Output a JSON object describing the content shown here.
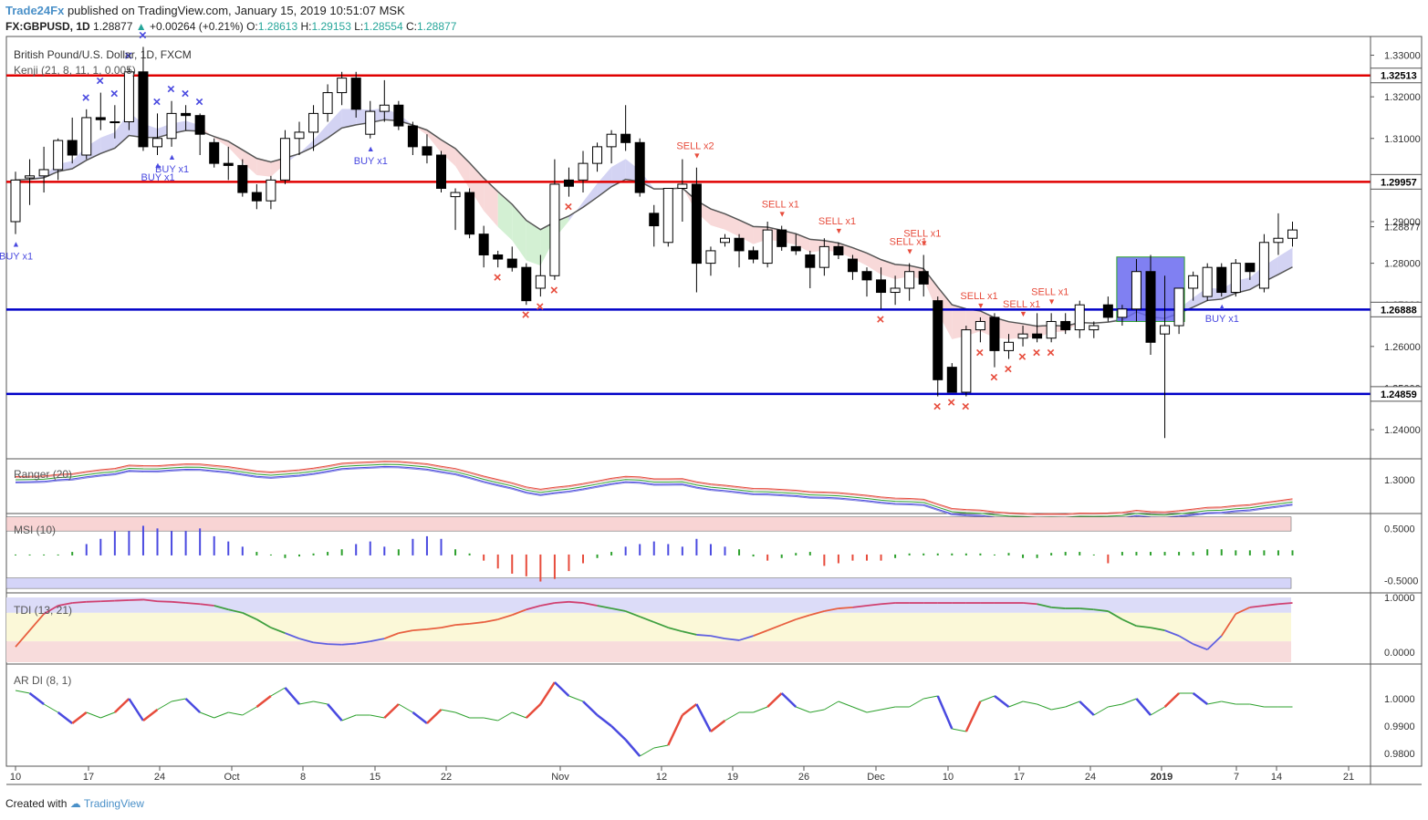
{
  "header": {
    "brand": "Trade24Fx",
    "published": "published on TradingView.com, January 15, 2019 10:51:07 MSK",
    "symbol": "FX:GBPUSD, 1D",
    "last": "1.28877",
    "change_arrow": "▲",
    "change": "+0.00264 (+0.21%)",
    "o_label": "O:",
    "o": "1.28613",
    "h_label": "H:",
    "h": "1.29153",
    "l_label": "L:",
    "l": "1.28554",
    "c_label": "C:",
    "c": "1.28877"
  },
  "legend": {
    "title": "British Pound/U.S. Dollar, 1D, FXCM",
    "indicator": "Kenji (21, 8, 11, 1, 0.005)"
  },
  "panes": {
    "ranger": "Ranger (20)",
    "msi": "MSI (10)",
    "tdi": "TDI (13, 21)",
    "ardi": "AR DI (8, 1)"
  },
  "footer": {
    "created_with": "Created with",
    "brand": "TradingView"
  },
  "colors": {
    "up": "#ffffff",
    "down": "#000000",
    "red_line": "#e00000",
    "blue_line": "#0000c8",
    "signal_red": "#e74c3c",
    "signal_blue": "#4a4ae0",
    "cloud_blue": "#c8c8f0",
    "cloud_red": "#f6d0d0",
    "cloud_green": "#c8ecc8"
  },
  "chart_data": [
    {
      "type": "candlestick",
      "title": "British Pound/U.S. Dollar, 1D, FXCM",
      "ylim": [
        1.233,
        1.3345
      ],
      "y_ticks": [
        "1.33000",
        "1.32000",
        "1.31000",
        "1.30000",
        "1.29000",
        "1.28000",
        "1.27000",
        "1.26000",
        "1.25000",
        "1.24000"
      ],
      "x_ticks": [
        "10",
        "17",
        "24",
        "Oct",
        "8",
        "15",
        "22",
        "Nov",
        "12",
        "19",
        "26",
        "Dec",
        "10",
        "17",
        "24",
        "2019",
        "7",
        "14",
        "21"
      ],
      "horizontal_levels": [
        {
          "price": 1.32513,
          "label": "1.32513",
          "color": "red"
        },
        {
          "price": 1.29957,
          "label": "1.29957",
          "color": "red"
        },
        {
          "price": 1.26888,
          "label": "1.26888",
          "color": "blue"
        },
        {
          "price": 1.24859,
          "label": "1.24859",
          "color": "blue"
        }
      ],
      "last_price_label": "1.28877",
      "candles": [
        [
          1.29,
          1.302,
          1.287,
          1.3
        ],
        [
          1.3005,
          1.305,
          1.294,
          1.301
        ],
        [
          1.301,
          1.308,
          1.297,
          1.3025
        ],
        [
          1.3025,
          1.31,
          1.3,
          1.3095
        ],
        [
          1.3095,
          1.315,
          1.304,
          1.306
        ],
        [
          1.306,
          1.317,
          1.305,
          1.315
        ],
        [
          1.315,
          1.321,
          1.312,
          1.3145
        ],
        [
          1.314,
          1.318,
          1.31,
          1.314
        ],
        [
          1.314,
          1.327,
          1.312,
          1.326
        ],
        [
          1.326,
          1.332,
          1.307,
          1.308
        ],
        [
          1.308,
          1.316,
          1.306,
          1.31
        ],
        [
          1.31,
          1.319,
          1.308,
          1.316
        ],
        [
          1.316,
          1.318,
          1.312,
          1.3155
        ],
        [
          1.3155,
          1.316,
          1.306,
          1.311
        ],
        [
          1.309,
          1.31,
          1.303,
          1.304
        ],
        [
          1.304,
          1.308,
          1.3,
          1.3035
        ],
        [
          1.3035,
          1.305,
          1.296,
          1.297
        ],
        [
          1.297,
          1.299,
          1.293,
          1.295
        ],
        [
          1.295,
          1.301,
          1.293,
          1.3
        ],
        [
          1.3,
          1.312,
          1.299,
          1.31
        ],
        [
          1.31,
          1.314,
          1.306,
          1.3115
        ],
        [
          1.3115,
          1.318,
          1.307,
          1.316
        ],
        [
          1.316,
          1.323,
          1.314,
          1.321
        ],
        [
          1.321,
          1.326,
          1.318,
          1.3245
        ],
        [
          1.3245,
          1.326,
          1.315,
          1.317
        ],
        [
          1.311,
          1.319,
          1.31,
          1.3165
        ],
        [
          1.3165,
          1.324,
          1.314,
          1.318
        ],
        [
          1.318,
          1.319,
          1.312,
          1.313
        ],
        [
          1.313,
          1.314,
          1.306,
          1.308
        ],
        [
          1.308,
          1.311,
          1.304,
          1.306
        ],
        [
          1.306,
          1.307,
          1.297,
          1.298
        ],
        [
          1.296,
          1.298,
          1.288,
          1.297
        ],
        [
          1.297,
          1.298,
          1.286,
          1.287
        ],
        [
          1.287,
          1.289,
          1.279,
          1.282
        ],
        [
          1.282,
          1.283,
          1.279,
          1.281
        ],
        [
          1.281,
          1.284,
          1.278,
          1.279
        ],
        [
          1.279,
          1.28,
          1.27,
          1.271
        ],
        [
          1.274,
          1.282,
          1.272,
          1.277
        ],
        [
          1.277,
          1.305,
          1.276,
          1.299
        ],
        [
          1.3,
          1.303,
          1.296,
          1.2985
        ],
        [
          1.3,
          1.307,
          1.297,
          1.304
        ],
        [
          1.304,
          1.309,
          1.302,
          1.308
        ],
        [
          1.308,
          1.312,
          1.304,
          1.311
        ],
        [
          1.311,
          1.318,
          1.307,
          1.309
        ],
        [
          1.309,
          1.31,
          1.296,
          1.297
        ],
        [
          1.292,
          1.294,
          1.284,
          1.289
        ],
        [
          1.285,
          1.298,
          1.284,
          1.298
        ],
        [
          1.298,
          1.305,
          1.29,
          1.299
        ],
        [
          1.299,
          1.303,
          1.273,
          1.28
        ],
        [
          1.28,
          1.284,
          1.277,
          1.283
        ],
        [
          1.285,
          1.287,
          1.284,
          1.286
        ],
        [
          1.286,
          1.287,
          1.279,
          1.283
        ],
        [
          1.283,
          1.284,
          1.28,
          1.281
        ],
        [
          1.28,
          1.29,
          1.279,
          1.288
        ],
        [
          1.288,
          1.289,
          1.283,
          1.284
        ],
        [
          1.284,
          1.287,
          1.282,
          1.283
        ],
        [
          1.282,
          1.283,
          1.274,
          1.279
        ],
        [
          1.279,
          1.286,
          1.277,
          1.284
        ],
        [
          1.284,
          1.285,
          1.281,
          1.282
        ],
        [
          1.281,
          1.282,
          1.276,
          1.278
        ],
        [
          1.278,
          1.279,
          1.272,
          1.276
        ],
        [
          1.276,
          1.279,
          1.269,
          1.273
        ],
        [
          1.273,
          1.277,
          1.27,
          1.274
        ],
        [
          1.274,
          1.28,
          1.271,
          1.278
        ],
        [
          1.278,
          1.282,
          1.272,
          1.275
        ],
        [
          1.271,
          1.272,
          1.248,
          1.252
        ],
        [
          1.255,
          1.256,
          1.249,
          1.249
        ],
        [
          1.249,
          1.265,
          1.248,
          1.264
        ],
        [
          1.264,
          1.267,
          1.261,
          1.266
        ],
        [
          1.267,
          1.268,
          1.255,
          1.259
        ],
        [
          1.259,
          1.263,
          1.257,
          1.261
        ],
        [
          1.262,
          1.265,
          1.26,
          1.263
        ],
        [
          1.263,
          1.268,
          1.261,
          1.262
        ],
        [
          1.262,
          1.268,
          1.261,
          1.266
        ],
        [
          1.266,
          1.268,
          1.263,
          1.264
        ],
        [
          1.264,
          1.271,
          1.262,
          1.27
        ],
        [
          1.264,
          1.266,
          1.262,
          1.265
        ],
        [
          1.27,
          1.272,
          1.266,
          1.267
        ],
        [
          1.267,
          1.27,
          1.265,
          1.269
        ],
        [
          1.269,
          1.281,
          1.266,
          1.278
        ],
        [
          1.278,
          1.282,
          1.258,
          1.261
        ],
        [
          1.263,
          1.277,
          1.238,
          1.265
        ],
        [
          1.265,
          1.274,
          1.263,
          1.274
        ],
        [
          1.274,
          1.278,
          1.271,
          1.277
        ],
        [
          1.272,
          1.28,
          1.271,
          1.279
        ],
        [
          1.279,
          1.28,
          1.272,
          1.273
        ],
        [
          1.273,
          1.281,
          1.272,
          1.28
        ],
        [
          1.28,
          1.28,
          1.276,
          1.278
        ],
        [
          1.274,
          1.287,
          1.273,
          1.285
        ],
        [
          1.285,
          1.292,
          1.282,
          1.286
        ],
        [
          1.286,
          1.29,
          1.284,
          1.288
        ]
      ],
      "signals": {
        "buy": [
          {
            "index": 0,
            "text": "BUY x1"
          },
          {
            "index": 10,
            "text": "BUY x1"
          },
          {
            "index": 11,
            "text": "BUY x1"
          },
          {
            "index": 25,
            "text": "BUY x1"
          },
          {
            "index": 85,
            "text": "BUY x1"
          }
        ],
        "sell": [
          {
            "index": 48,
            "text": "SELL x2"
          },
          {
            "index": 54,
            "text": "SELL x1"
          },
          {
            "index": 58,
            "text": "SELL x1"
          },
          {
            "index": 63,
            "text": "SELL x1"
          },
          {
            "index": 64,
            "text": "SELL x1"
          },
          {
            "index": 68,
            "text": "SELL x1"
          },
          {
            "index": 71,
            "text": "SELL x1"
          },
          {
            "index": 73,
            "text": "SELL x1"
          }
        ]
      },
      "markers": {
        "blue_x": [
          5,
          6,
          7,
          8,
          9,
          10,
          11,
          12,
          13
        ],
        "red_x": [
          34,
          36,
          37,
          38,
          39,
          61,
          65,
          66,
          67,
          68,
          69,
          70,
          71,
          72,
          73
        ]
      }
    },
    {
      "type": "line",
      "title": "Ranger (20)",
      "ylim": [
        1.27,
        1.318
      ],
      "y_ticks": [
        "1.3000"
      ]
    },
    {
      "type": "bar",
      "title": "MSI (10)",
      "ylim": [
        -0.7,
        0.75
      ],
      "y_ticks": [
        "0.5000",
        "-0.5000"
      ],
      "values": [
        0,
        0,
        0,
        0,
        0.05,
        0.2,
        0.3,
        0.45,
        0.45,
        0.55,
        0.5,
        0.45,
        0.45,
        0.5,
        0.35,
        0.25,
        0.15,
        0.05,
        0,
        -0.05,
        -0.02,
        0.02,
        0.05,
        0.1,
        0.2,
        0.25,
        0.15,
        0.1,
        0.3,
        0.35,
        0.3,
        0.1,
        0.02,
        -0.1,
        -0.25,
        -0.35,
        -0.4,
        -0.5,
        -0.45,
        -0.3,
        -0.15,
        -0.05,
        0.05,
        0.15,
        0.2,
        0.25,
        0.2,
        0.15,
        0.3,
        0.2,
        0.15,
        0.1,
        -0.02,
        -0.1,
        -0.05,
        0.03,
        0.05,
        -0.2,
        -0.15,
        -0.1,
        -0.1,
        -0.1,
        -0.05,
        0.02,
        0.02,
        0.02,
        0.02,
        0.02,
        0.02,
        0,
        0.03,
        -0.05,
        -0.05,
        0.03,
        0.05,
        0.05,
        0,
        -0.15,
        0.05,
        0.05,
        0.05,
        0.05,
        0.05,
        0.05,
        0.1,
        0.1,
        0.08,
        0.08,
        0.08,
        0.08,
        0.08
      ]
    },
    {
      "type": "line",
      "title": "TDI (13, 21)",
      "ylim": [
        -0.18,
        1.05
      ],
      "y_ticks": [
        "1.0000",
        "0.0000"
      ],
      "values": [
        0.1,
        0.4,
        0.7,
        0.85,
        0.9,
        0.92,
        0.93,
        0.94,
        0.95,
        0.96,
        0.93,
        0.92,
        0.9,
        0.88,
        0.85,
        0.78,
        0.72,
        0.6,
        0.45,
        0.35,
        0.25,
        0.18,
        0.15,
        0.14,
        0.16,
        0.2,
        0.25,
        0.35,
        0.4,
        0.42,
        0.45,
        0.5,
        0.52,
        0.55,
        0.6,
        0.68,
        0.78,
        0.85,
        0.9,
        0.92,
        0.9,
        0.85,
        0.8,
        0.75,
        0.65,
        0.55,
        0.45,
        0.38,
        0.32,
        0.3,
        0.25,
        0.22,
        0.3,
        0.4,
        0.5,
        0.6,
        0.68,
        0.75,
        0.8,
        0.82,
        0.85,
        0.88,
        0.9,
        0.9,
        0.9,
        0.9,
        0.9,
        0.9,
        0.9,
        0.9,
        0.9,
        0.9,
        0.88,
        0.82,
        0.8,
        0.8,
        0.78,
        0.75,
        0.6,
        0.48,
        0.45,
        0.4,
        0.3,
        0.15,
        0.05,
        0.3,
        0.7,
        0.82,
        0.85,
        0.88,
        0.9
      ]
    },
    {
      "type": "line",
      "title": "AR DI (8, 1)",
      "ylim": [
        0.976,
        1.012
      ],
      "y_ticks": [
        "1.0000",
        "0.9900",
        "0.9800"
      ],
      "values": [
        1.003,
        1.002,
        0.998,
        0.995,
        0.991,
        0.995,
        0.993,
        0.995,
        1.0,
        0.992,
        0.996,
        0.999,
        1.0,
        0.995,
        0.993,
        0.995,
        0.994,
        0.997,
        1.001,
        1.004,
        0.998,
        0.999,
        0.998,
        0.992,
        0.994,
        0.994,
        0.993,
        0.998,
        0.995,
        0.991,
        0.996,
        0.995,
        0.993,
        0.993,
        0.992,
        0.995,
        0.993,
        0.998,
        1.006,
        1.001,
        0.999,
        0.994,
        0.99,
        0.985,
        0.979,
        0.982,
        0.983,
        0.994,
        0.998,
        0.988,
        0.992,
        0.995,
        0.995,
        0.997,
        1.002,
        0.997,
        0.995,
        0.996,
        0.999,
        0.997,
        0.995,
        0.996,
        0.997,
        0.997,
        1.0,
        1.001,
        0.989,
        0.988,
        0.999,
        1.001,
        0.997,
        0.999,
        0.998,
        0.996,
        0.997,
        0.999,
        0.994,
        0.997,
        0.998,
        1.0,
        0.994,
        0.997,
        1.002,
        1.002,
        0.998,
        0.999,
        0.998,
        0.998,
        0.997,
        0.997,
        0.997
      ]
    }
  ]
}
